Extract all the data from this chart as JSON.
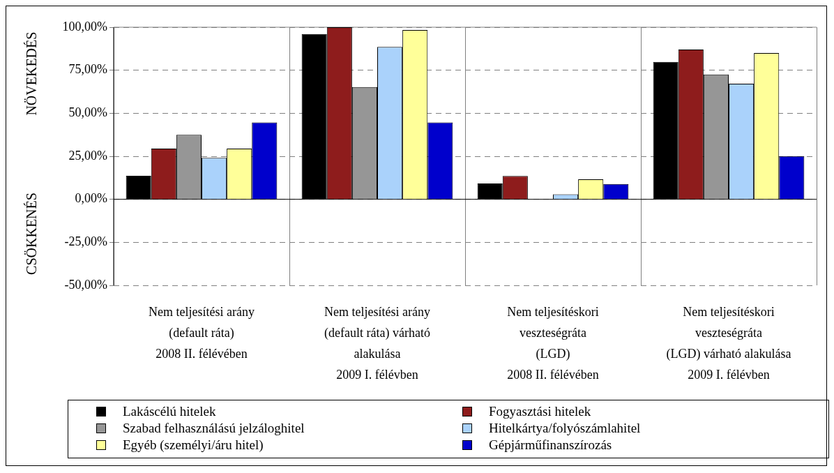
{
  "chart_data": {
    "type": "bar",
    "ylabel": "NÖVEKEDÉS",
    "annotations": [
      "CSÖKKENÉS"
    ],
    "categories": [
      "Nem teljesítési arány\n(default ráta)\n2008 II. félévében",
      "Nem teljesítési arány\n(default ráta) várható\nalakulása\n2009 I. félévben",
      "Nem teljesítéskori\nveszteségráta\n(LGD)\n2008 II. félévében",
      "Nem teljesítéskori\nveszteségráta\n(LGD) várható alakulása\n2009 I. félévben"
    ],
    "series": [
      {
        "name": "Lakáscélú hitelek",
        "color": "#000000",
        "values": [
          13.6,
          96,
          9.2,
          79.8
        ]
      },
      {
        "name": "Fogyasztási hitelek",
        "color": "#8e1c1c",
        "values": [
          29.5,
          100,
          13.5,
          87
        ]
      },
      {
        "name": "Szabad felhasználású jelzáloghitel",
        "color": "#969696",
        "values": [
          37.5,
          65.2,
          0,
          72.5
        ]
      },
      {
        "name": "Hitelkártya/folyószámlahitel",
        "color": "#aad2fb",
        "values": [
          24.1,
          88.5,
          2.9,
          67.2
        ]
      },
      {
        "name": "Egyéb (személyi/áru hitel)",
        "color": "#ffff99",
        "values": [
          29.5,
          98.4,
          11.6,
          85
        ]
      },
      {
        "name": "Gépjárműfinanszírozás",
        "color": "#0000cc",
        "values": [
          44.7,
          44.7,
          8.9,
          25.1
        ]
      }
    ],
    "ylim": [
      -50,
      100
    ],
    "yticks": [
      {
        "value": -50,
        "label": "-50,00%"
      },
      {
        "value": -25,
        "label": "-25,00%"
      },
      {
        "value": 0,
        "label": "0,00%"
      },
      {
        "value": 25,
        "label": "25,00%"
      },
      {
        "value": 50,
        "label": "50,00%"
      },
      {
        "value": 75,
        "label": "75,00%"
      },
      {
        "value": 100,
        "label": "100,00%"
      }
    ],
    "grid": true,
    "legend": "bottom"
  }
}
